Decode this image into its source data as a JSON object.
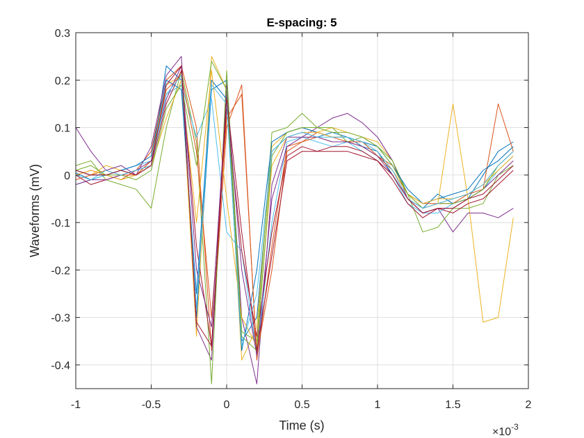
{
  "chart_data": {
    "type": "line",
    "title": "E-spacing: 5",
    "xlabel": "Time (s)",
    "ylabel": "Waveforms (mV)",
    "x_multiplier": "×10",
    "x_multiplier_exp": "-3",
    "xlim": [
      -1,
      2
    ],
    "ylim": [
      -0.45,
      0.3
    ],
    "xticks": [
      -1,
      -0.5,
      0,
      0.5,
      1,
      1.5,
      2
    ],
    "xtick_labels": [
      "-1",
      "-0.5",
      "0",
      "0.5",
      "1",
      "1.5",
      "2"
    ],
    "yticks": [
      0.3,
      0.2,
      0.1,
      0,
      -0.1,
      -0.2,
      -0.3,
      -0.4
    ],
    "ytick_labels": [
      "0.3",
      "0.2",
      "0.1",
      "0",
      "-0.1",
      "-0.2",
      "-0.3",
      "-0.4"
    ],
    "grid": true,
    "x": [
      -1.0,
      -0.9,
      -0.8,
      -0.7,
      -0.6,
      -0.5,
      -0.4,
      -0.3,
      -0.2,
      -0.1,
      0.0,
      0.1,
      0.2,
      0.3,
      0.4,
      0.5,
      0.6,
      0.7,
      0.8,
      0.9,
      1.0,
      1.1,
      1.2,
      1.3,
      1.4,
      1.5,
      1.6,
      1.7,
      1.8,
      1.9
    ],
    "series": [
      {
        "color": "#0072BD",
        "values": [
          0.005,
          -0.01,
          0.0,
          0.01,
          0.0,
          0.02,
          0.23,
          0.2,
          -0.3,
          0.18,
          0.2,
          -0.35,
          -0.3,
          0.05,
          0.08,
          0.09,
          0.08,
          0.09,
          0.08,
          0.06,
          0.05,
          0.0,
          -0.05,
          -0.07,
          -0.04,
          -0.06,
          -0.05,
          0.0,
          0.05,
          0.07
        ]
      },
      {
        "color": "#D95319",
        "values": [
          0.0,
          0.01,
          0.0,
          -0.01,
          0.01,
          0.05,
          0.2,
          0.23,
          0.1,
          -0.37,
          0.1,
          0.19,
          -0.39,
          -0.15,
          0.06,
          0.07,
          0.09,
          0.08,
          0.07,
          0.07,
          0.04,
          0.02,
          -0.04,
          -0.06,
          -0.06,
          -0.05,
          -0.04,
          -0.03,
          0.15,
          0.05
        ]
      },
      {
        "color": "#EDB120",
        "values": [
          0.01,
          0.0,
          0.02,
          0.01,
          0.0,
          0.03,
          0.19,
          0.21,
          -0.34,
          0.25,
          0.18,
          -0.39,
          -0.32,
          0.06,
          0.09,
          0.1,
          0.09,
          0.1,
          0.09,
          0.08,
          0.07,
          0.03,
          -0.04,
          -0.07,
          -0.06,
          0.15,
          -0.05,
          -0.31,
          -0.3,
          -0.09
        ]
      },
      {
        "color": "#7E2F8E",
        "values": [
          0.1,
          0.05,
          0.01,
          0.02,
          0.0,
          0.06,
          0.21,
          0.25,
          -0.32,
          -0.39,
          0.19,
          -0.3,
          -0.44,
          -0.02,
          0.08,
          0.08,
          0.1,
          0.12,
          0.13,
          0.11,
          0.08,
          0.03,
          -0.05,
          -0.08,
          -0.07,
          -0.12,
          -0.08,
          -0.08,
          -0.09,
          -0.07
        ]
      },
      {
        "color": "#77AC30",
        "values": [
          0.02,
          0.03,
          -0.01,
          -0.02,
          -0.03,
          -0.07,
          0.1,
          0.22,
          0.07,
          -0.44,
          0.22,
          -0.33,
          -0.35,
          0.09,
          0.1,
          0.13,
          0.1,
          0.1,
          0.07,
          0.08,
          0.06,
          0.03,
          -0.04,
          -0.12,
          -0.11,
          -0.07,
          -0.07,
          -0.06,
          0.0,
          0.02
        ]
      },
      {
        "color": "#4DBEEE",
        "values": [
          -0.02,
          -0.01,
          0.0,
          0.01,
          0.02,
          0.03,
          0.17,
          0.19,
          0.08,
          0.16,
          -0.12,
          -0.16,
          -0.38,
          -0.1,
          0.07,
          0.08,
          0.07,
          0.06,
          0.07,
          0.05,
          0.03,
          0.0,
          -0.06,
          -0.08,
          -0.08,
          -0.06,
          -0.05,
          -0.03,
          0.01,
          0.04
        ]
      },
      {
        "color": "#A2142F",
        "values": [
          0.0,
          -0.02,
          -0.01,
          0.0,
          0.01,
          0.02,
          0.15,
          0.22,
          -0.15,
          -0.36,
          0.14,
          -0.16,
          -0.34,
          -0.12,
          0.04,
          0.06,
          0.05,
          0.05,
          0.05,
          0.04,
          0.03,
          -0.01,
          -0.06,
          -0.09,
          -0.07,
          -0.08,
          -0.06,
          -0.05,
          -0.02,
          0.01
        ]
      },
      {
        "color": "#0072BD",
        "values": [
          0.01,
          0.0,
          0.0,
          0.01,
          0.02,
          0.04,
          0.2,
          0.18,
          -0.25,
          0.2,
          0.16,
          -0.37,
          -0.2,
          0.07,
          0.09,
          0.1,
          0.09,
          0.08,
          0.08,
          0.07,
          0.06,
          0.02,
          -0.03,
          -0.06,
          -0.05,
          -0.04,
          -0.03,
          0.01,
          0.03,
          0.06
        ]
      },
      {
        "color": "#D95319",
        "values": [
          -0.01,
          0.0,
          0.01,
          0.0,
          0.0,
          0.03,
          0.18,
          0.21,
          0.05,
          -0.3,
          0.12,
          0.17,
          -0.38,
          -0.2,
          0.05,
          0.07,
          0.08,
          0.07,
          0.07,
          0.06,
          0.04,
          0.01,
          -0.05,
          -0.07,
          -0.06,
          -0.06,
          -0.04,
          -0.02,
          0.02,
          0.05
        ]
      },
      {
        "color": "#EDB120",
        "values": [
          0.0,
          0.01,
          0.0,
          -0.01,
          0.0,
          0.02,
          0.12,
          0.2,
          -0.1,
          0.22,
          -0.05,
          -0.3,
          -0.36,
          0.02,
          0.08,
          0.09,
          0.09,
          0.08,
          0.08,
          0.07,
          0.05,
          0.01,
          -0.04,
          -0.06,
          -0.05,
          -0.05,
          -0.04,
          -0.02,
          0.01,
          0.04
        ]
      },
      {
        "color": "#7E2F8E",
        "values": [
          -0.02,
          -0.01,
          -0.01,
          0.0,
          0.01,
          0.03,
          0.16,
          0.23,
          -0.2,
          -0.32,
          0.17,
          -0.2,
          -0.38,
          -0.05,
          0.06,
          0.08,
          0.08,
          0.07,
          0.07,
          0.06,
          0.04,
          0.0,
          -0.05,
          -0.08,
          -0.07,
          -0.07,
          -0.05,
          -0.03,
          0.0,
          0.03
        ]
      },
      {
        "color": "#77AC30",
        "values": [
          0.01,
          0.02,
          0.0,
          0.0,
          -0.01,
          0.01,
          0.14,
          0.19,
          0.02,
          0.24,
          0.18,
          -0.34,
          -0.37,
          0.04,
          0.09,
          0.1,
          0.1,
          0.09,
          0.09,
          0.08,
          0.06,
          0.02,
          -0.04,
          -0.07,
          -0.06,
          -0.06,
          -0.05,
          -0.03,
          0.02,
          0.05
        ]
      },
      {
        "color": "#4DBEEE",
        "values": [
          0.0,
          -0.01,
          0.01,
          0.0,
          0.01,
          0.02,
          0.17,
          0.21,
          -0.28,
          0.19,
          0.15,
          -0.36,
          -0.25,
          0.05,
          0.08,
          0.09,
          0.08,
          0.08,
          0.08,
          0.07,
          0.05,
          0.01,
          -0.05,
          -0.07,
          -0.06,
          -0.05,
          -0.04,
          -0.02,
          0.02,
          0.05
        ]
      },
      {
        "color": "#A2142F",
        "values": [
          0.01,
          0.0,
          0.0,
          0.01,
          0.0,
          0.02,
          0.19,
          0.23,
          -0.31,
          -0.36,
          0.16,
          -0.12,
          -0.37,
          -0.17,
          0.03,
          0.05,
          0.05,
          0.06,
          0.06,
          0.05,
          0.03,
          0.0,
          -0.05,
          -0.08,
          -0.07,
          -0.07,
          -0.05,
          -0.04,
          -0.01,
          0.02
        ]
      }
    ]
  }
}
